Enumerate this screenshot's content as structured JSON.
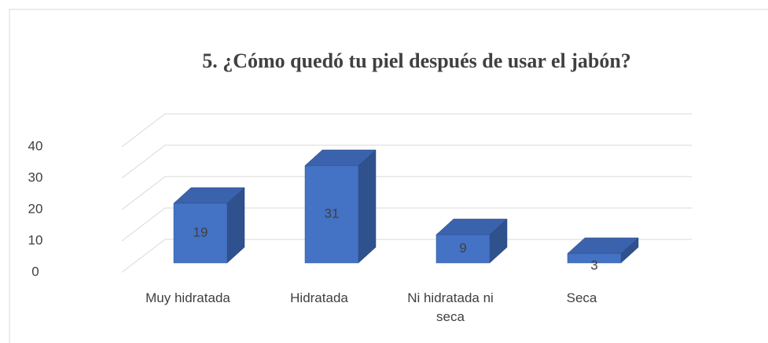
{
  "chart_data": {
    "type": "bar3d",
    "title": "5. ¿Cómo quedó tu piel después de usar el jabón?",
    "categories": [
      "Muy hidratada",
      "Hidratada",
      "Ni hidratada ni seca",
      "Seca"
    ],
    "values": [
      19,
      31,
      9,
      3
    ],
    "color": "#4472c4",
    "ylim": [
      0,
      40
    ],
    "yticks": [
      0,
      10,
      20,
      30,
      40
    ],
    "grid": true
  }
}
